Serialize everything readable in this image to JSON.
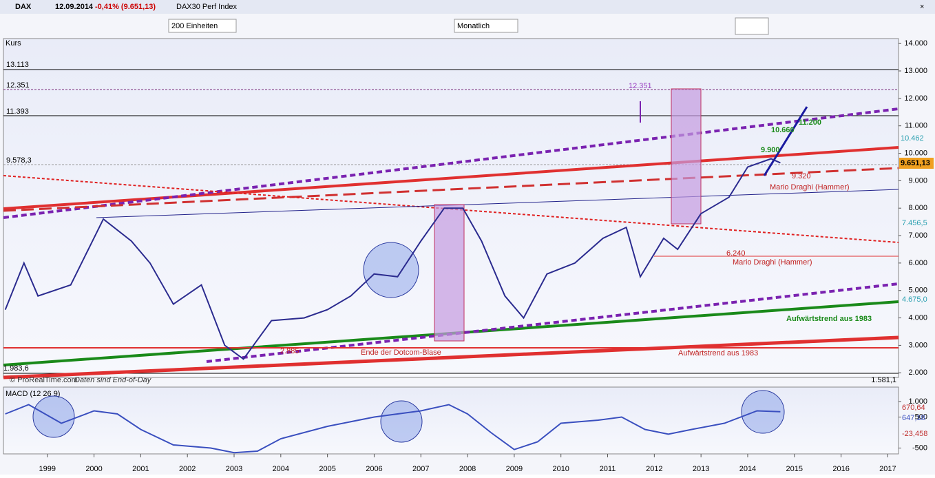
{
  "toolbar": {
    "symbol": "DAX",
    "date": "12.09.2014",
    "change": "-0,41% (9.651,13)",
    "name": "DAX30 Perf Index",
    "units": "200 Einheiten",
    "period": "Monatlich"
  },
  "price_chart": {
    "type": "line",
    "label": "Kurs",
    "x": [
      1998.1,
      1998.5,
      1998.8,
      1999.5,
      2000.2,
      2000.8,
      2001.2,
      2001.7,
      2002.3,
      2002.8,
      2003.2,
      2003.8,
      2004.5,
      2005.0,
      2005.5,
      2006.0,
      2006.5,
      2007.0,
      2007.5,
      2007.9,
      2008.3,
      2008.8,
      2009.2,
      2009.7,
      2010.3,
      2010.9,
      2011.4,
      2011.7,
      2012.2,
      2012.5,
      2013.0,
      2013.6,
      2014.0,
      2014.5,
      2014.7
    ],
    "values": [
      4300,
      6000,
      4800,
      5200,
      7600,
      6800,
      6000,
      4500,
      5200,
      3000,
      2500,
      3900,
      4000,
      4300,
      4800,
      5600,
      5500,
      6800,
      8000,
      8000,
      6800,
      4800,
      4000,
      5600,
      6000,
      6900,
      7300,
      5500,
      6900,
      6500,
      7800,
      8400,
      9500,
      9800,
      9651
    ],
    "color": "#2b2b8f",
    "xlim": [
      1998.06,
      2017.23
    ],
    "xticks": [
      1999,
      2000,
      2001,
      2002,
      2003,
      2004,
      2005,
      2006,
      2007,
      2008,
      2009,
      2010,
      2011,
      2012,
      2013,
      2014,
      2015,
      2016,
      2017
    ],
    "ylim": [
      1830,
      14180
    ],
    "yticks": [
      {
        "value": 2000,
        "label": "2.000"
      },
      {
        "value": 3000,
        "label": "3.000"
      },
      {
        "value": 4000,
        "label": "4.000"
      },
      {
        "value": 5000,
        "label": "5.000"
      },
      {
        "value": 6000,
        "label": "6.000"
      },
      {
        "value": 7000,
        "label": "7.000"
      },
      {
        "value": 8000,
        "label": "8.000"
      },
      {
        "value": 9000,
        "label": "9.000"
      },
      {
        "value": 10000,
        "label": "10.000"
      },
      {
        "value": 11000,
        "label": "11.000"
      },
      {
        "value": 12000,
        "label": "12.000"
      },
      {
        "value": 13000,
        "label": "13.000"
      },
      {
        "value": 14000,
        "label": "14.000"
      }
    ],
    "level_labels": [
      "13.113",
      "12.351",
      "11.393",
      "9.578,3",
      "1.983,6"
    ],
    "right_labels": [
      "10.462",
      "9.651,13",
      "7.456,5",
      "4.675,0",
      "1.581,1"
    ],
    "annotations": [
      "12.351",
      "10.660",
      "11.200",
      "9.900",
      "9.320",
      "Mario Draghi (Hammer)",
      "6.240",
      "Mario Draghi (Hammer)",
      "2.885",
      "Ende der Dotcom-Blase",
      "Aufwärtstrend aus 1983",
      "Aufwärtstrend aus 1983"
    ],
    "source": "© ProRealTime.com",
    "source_note": "Daten sind End-of-Day"
  },
  "macd_chart": {
    "type": "line",
    "label": "MACD (12 26 9)",
    "x": [
      1998.1,
      1998.6,
      1999.3,
      2000.0,
      2000.5,
      2001.0,
      2001.7,
      2002.5,
      2003.0,
      2003.5,
      2004.0,
      2005.0,
      2006.0,
      2007.0,
      2007.6,
      2008.0,
      2008.5,
      2009.0,
      2009.5,
      2010.0,
      2010.8,
      2011.3,
      2011.8,
      2012.3,
      2012.8,
      2013.5,
      2014.2,
      2014.7
    ],
    "values": [
      600,
      900,
      300,
      700,
      600,
      100,
      -400,
      -500,
      -650,
      -600,
      -200,
      200,
      500,
      700,
      900,
      600,
      0,
      -550,
      -300,
      300,
      400,
      500,
      100,
      -50,
      100,
      300,
      700,
      670.64
    ],
    "color": "#3a4fbf",
    "ylim": [
      -689,
      1467
    ],
    "yticks": [
      {
        "value": 1000,
        "label": "1.000"
      },
      500,
      -500
    ],
    "right_labels": [
      "670,64",
      "647,18",
      "-23,458"
    ]
  }
}
